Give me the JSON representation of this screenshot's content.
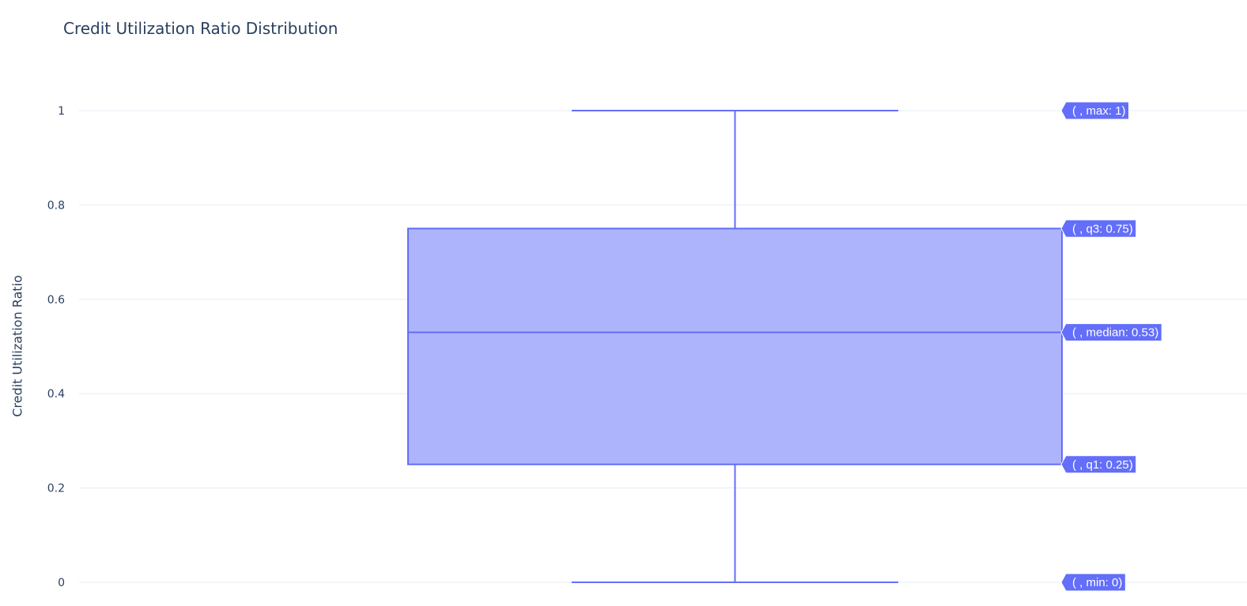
{
  "chart_data": {
    "type": "box",
    "title": "Credit Utilization Ratio Distribution",
    "xlabel": "",
    "ylabel": "Credit Utilization Ratio",
    "ylim": [
      0,
      1
    ],
    "yticks": [
      0,
      0.2,
      0.4,
      0.6,
      0.8,
      1
    ],
    "ytick_labels": [
      "0",
      "0.2",
      "0.4",
      "0.6",
      "0.8",
      "1"
    ],
    "grid": true,
    "legend": "none",
    "colors": {
      "box_line": "#636efa",
      "box_fill": "#aeb4fb",
      "grid": "#e5ecf6",
      "text": "#2a3f5f",
      "label_bg": "#636efa"
    },
    "box": {
      "min": 0,
      "q1": 0.25,
      "median": 0.53,
      "q3": 0.75,
      "max": 1
    },
    "hover_labels": [
      {
        "stat": "max",
        "value": 1,
        "text": "( , max: 1)"
      },
      {
        "stat": "q3",
        "value": 0.75,
        "text": "( , q3: 0.75)"
      },
      {
        "stat": "median",
        "value": 0.53,
        "text": "( , median: 0.53)"
      },
      {
        "stat": "q1",
        "value": 0.25,
        "text": "( , q1: 0.25)"
      },
      {
        "stat": "min",
        "value": 0,
        "text": "( , min: 0)"
      }
    ]
  }
}
